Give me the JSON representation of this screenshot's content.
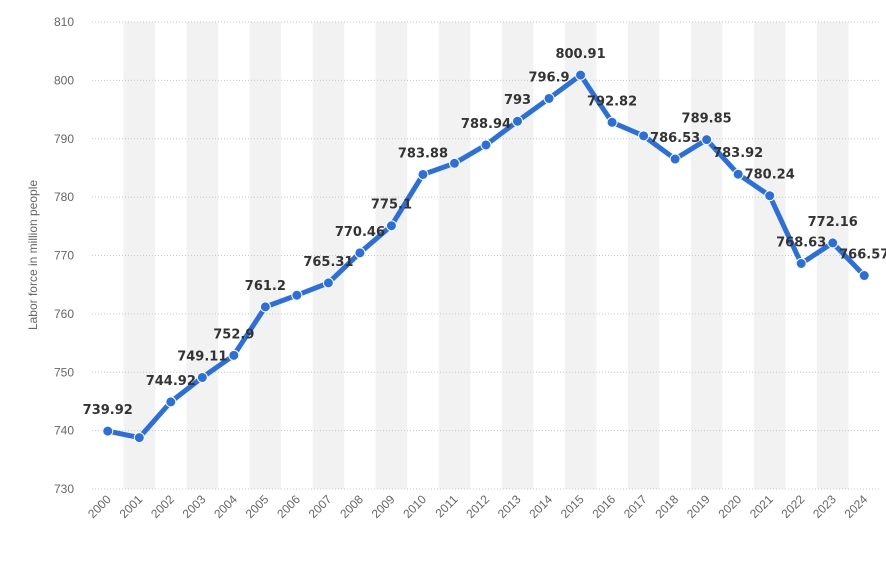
{
  "chart_data": {
    "type": "line",
    "title": "",
    "xlabel": "",
    "ylabel": "Labor force in million people",
    "ylim": [
      730,
      810
    ],
    "yticks": [
      730,
      740,
      750,
      760,
      770,
      780,
      790,
      800,
      810
    ],
    "grid": true,
    "colors": {
      "line": "#2a6fdb",
      "band": "#f2f2f2",
      "grid": "#c8c8c8"
    },
    "categories": [
      "2000",
      "2001",
      "2002",
      "2003",
      "2004",
      "2005",
      "2006",
      "2007",
      "2008",
      "2009",
      "2010",
      "2011",
      "2012",
      "2013",
      "2014",
      "2015",
      "2016",
      "2017",
      "2018",
      "2019",
      "2020",
      "2021",
      "2022",
      "2023",
      "2024"
    ],
    "values": [
      739.92,
      738.8,
      744.92,
      749.11,
      752.9,
      761.2,
      763.2,
      765.31,
      770.46,
      775.1,
      783.88,
      785.8,
      788.94,
      793,
      796.9,
      800.91,
      792.82,
      790.5,
      786.53,
      789.85,
      783.92,
      780.24,
      768.63,
      772.16,
      766.57
    ],
    "data_labels": [
      "739.92",
      "",
      "744.92",
      "749.11",
      "752.9",
      "761.2",
      "",
      "765.31",
      "770.46",
      "775.1",
      "783.88",
      "",
      "788.94",
      "793",
      "796.9",
      "800.91",
      "792.82",
      "",
      "786.53",
      "789.85",
      "783.92",
      "780.24",
      "768.63",
      "772.16",
      "766.57"
    ]
  }
}
